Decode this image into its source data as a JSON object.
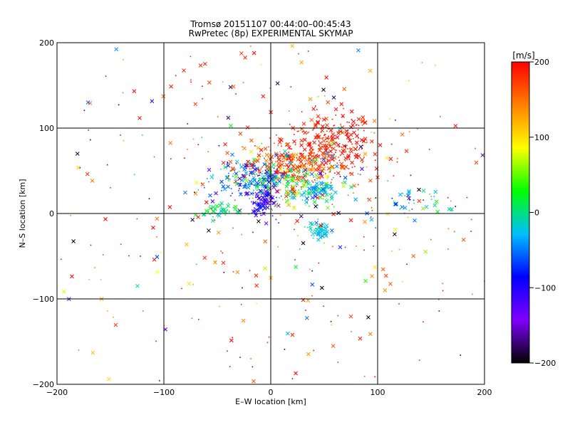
{
  "chart_data": {
    "type": "scatter",
    "title": "Tromsø 20151107 00:44:00–00:45:43",
    "subtitle": "RwPretec (8p) EXPERIMENTAL SKYMAP",
    "xlabel": "E–W location [km]",
    "ylabel": "N–S location [km]",
    "xlim": [
      -200,
      200
    ],
    "ylim": [
      -200,
      200
    ],
    "xticks": [
      -200,
      -100,
      0,
      100,
      200
    ],
    "yticks": [
      -200,
      -100,
      0,
      100,
      200
    ],
    "xtick_labels": [
      "−200",
      "−100",
      "0",
      "100",
      "200"
    ],
    "ytick_labels": [
      "−200",
      "−100",
      "0",
      "100",
      "200"
    ],
    "grid": true,
    "colorbar": {
      "label": "[m/s]",
      "range": [
        -200,
        200
      ],
      "ticks": [
        200,
        100,
        0,
        -100,
        -200
      ],
      "tick_labels": [
        "200",
        "100",
        "0",
        "−100",
        "−200"
      ],
      "colors": [
        "#000000",
        "#7f00ff",
        "#0000ff",
        "#00bfff",
        "#00ff00",
        "#ffff00",
        "#ff8000",
        "#ff0000"
      ]
    },
    "clusters": [
      {
        "x": 55,
        "y": 80,
        "sx": 22,
        "sy": 18,
        "n": 320,
        "v": 190,
        "dv": 15
      },
      {
        "x": 15,
        "y": 55,
        "sx": 25,
        "sy": 12,
        "n": 260,
        "v": 170,
        "dv": 30
      },
      {
        "x": -15,
        "y": 40,
        "sx": 18,
        "sy": 12,
        "n": 200,
        "v": -50,
        "dv": 40
      },
      {
        "x": -8,
        "y": 15,
        "sx": 7,
        "sy": 10,
        "n": 90,
        "v": -120,
        "dv": 20
      },
      {
        "x": 25,
        "y": 35,
        "sx": 25,
        "sy": 15,
        "n": 150,
        "v": 20,
        "dv": 40
      },
      {
        "x": 45,
        "y": 28,
        "sx": 10,
        "sy": 8,
        "n": 60,
        "v": -30,
        "dv": 20
      },
      {
        "x": 45,
        "y": -20,
        "sx": 5,
        "sy": 5,
        "n": 70,
        "v": -20,
        "dv": 15
      },
      {
        "x": -45,
        "y": 2,
        "sx": 12,
        "sy": 4,
        "n": 50,
        "v": 10,
        "dv": 20
      },
      {
        "x": 130,
        "y": 10,
        "sx": 20,
        "sy": 10,
        "n": 40,
        "v": -10,
        "dv": 40
      },
      {
        "x": 0,
        "y": 0,
        "sx": 140,
        "sy": 130,
        "n": 340,
        "v": 175,
        "dv": 40
      },
      {
        "x": 0,
        "y": 0,
        "sx": 120,
        "sy": 120,
        "n": 60,
        "v": -180,
        "dv": 20
      },
      {
        "x": 0,
        "y": 0,
        "sx": 130,
        "sy": 120,
        "n": 70,
        "v": 0,
        "dv": 90
      }
    ]
  }
}
